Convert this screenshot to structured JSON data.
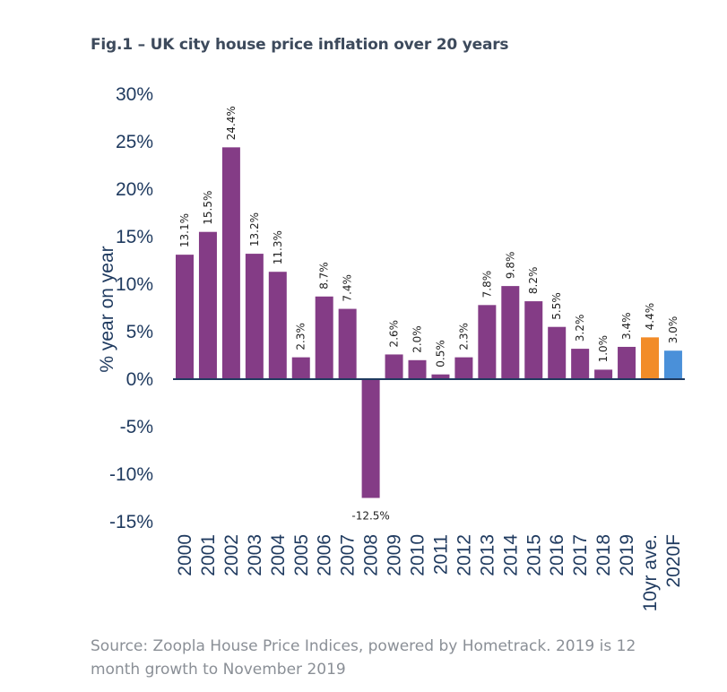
{
  "title": "Fig.1 – UK city house price inflation over 20 years",
  "source": "Source: Zoopla House Price Indices, powered by Hometrack. 2019 is 12 month growth to November 2019",
  "colors": {
    "main": "#843c86",
    "average": "#f28c28",
    "forecast": "#4a90d9",
    "axis": "#1f3a5f"
  },
  "chart_data": {
    "type": "bar",
    "title": "Fig.1 – UK city house price inflation over 20 years",
    "xlabel": "",
    "ylabel": "% year on year",
    "ylim": [
      -15,
      30
    ],
    "yticks": [
      30,
      25,
      20,
      15,
      10,
      5,
      0,
      -5,
      -10,
      -15
    ],
    "ytick_labels": [
      "30%",
      "25%",
      "20%",
      "15%",
      "10%",
      "5%",
      "0%",
      "-5%",
      "-10%",
      "-15%"
    ],
    "grid": false,
    "categories": [
      "2000",
      "2001",
      "2002",
      "2003",
      "2004",
      "2005",
      "2006",
      "2007",
      "2008",
      "2009",
      "2010",
      "2011",
      "2012",
      "2013",
      "2014",
      "2015",
      "2016",
      "2017",
      "2018",
      "2019",
      "10yr ave.",
      "2020F"
    ],
    "values": [
      13.1,
      15.5,
      24.4,
      13.2,
      11.3,
      2.3,
      8.7,
      7.4,
      -12.5,
      2.6,
      2.0,
      0.5,
      2.3,
      7.8,
      9.8,
      8.2,
      5.5,
      3.2,
      1.0,
      3.4,
      4.4,
      3.0
    ],
    "data_labels": [
      "13.1%",
      "15.5%",
      "24.4%",
      "13.2%",
      "11.3%",
      "2.3%",
      "8.7%",
      "7.4%",
      "-12.5%",
      "2.6%",
      "2.0%",
      "0.5%",
      "2.3%",
      "7.8%",
      "9.8%",
      "8.2%",
      "5.5%",
      "3.2%",
      "1.0%",
      "3.4%",
      "4.4%",
      "3.0%"
    ],
    "bar_colors": [
      "main",
      "main",
      "main",
      "main",
      "main",
      "main",
      "main",
      "main",
      "main",
      "main",
      "main",
      "main",
      "main",
      "main",
      "main",
      "main",
      "main",
      "main",
      "main",
      "main",
      "average",
      "forecast"
    ]
  }
}
